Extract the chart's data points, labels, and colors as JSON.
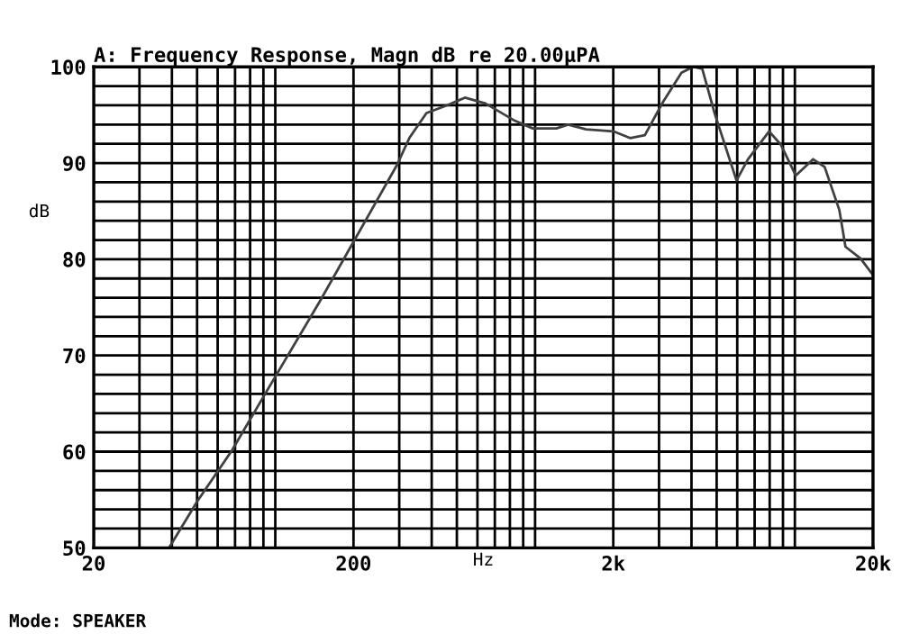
{
  "chart_data": {
    "type": "line",
    "title": "A: Frequency Response, Magn dB re 20.00μPA",
    "xlabel": "Hz",
    "ylabel": "dB",
    "annotations": [
      "Mode: SPEAKER"
    ],
    "log": "x",
    "grid": true,
    "legend": false,
    "marker": "none",
    "line_style": "solid",
    "xlim": [
      20,
      20000
    ],
    "ylim": [
      50,
      100
    ],
    "xticks": [
      20,
      {
        "value": 30,
        "label": null
      },
      {
        "value": 40,
        "label": null
      },
      {
        "value": 50,
        "label": null
      },
      {
        "value": 60,
        "label": null
      },
      {
        "value": 70,
        "label": null
      },
      {
        "value": 80,
        "label": null
      },
      {
        "value": 90,
        "label": null
      },
      {
        "value": 100,
        "label": null
      },
      200,
      {
        "value": 300,
        "label": null
      },
      {
        "value": 400,
        "label": null
      },
      {
        "value": 500,
        "label": null
      },
      {
        "value": 600,
        "label": null
      },
      {
        "value": 700,
        "label": null
      },
      {
        "value": 800,
        "label": null
      },
      {
        "value": 900,
        "label": null
      },
      {
        "value": 1000,
        "label": null
      },
      {
        "value": 2000,
        "label": "2k"
      },
      {
        "value": 3000,
        "label": null
      },
      {
        "value": 4000,
        "label": null
      },
      {
        "value": 5000,
        "label": null
      },
      {
        "value": 6000,
        "label": null
      },
      {
        "value": 7000,
        "label": null
      },
      {
        "value": 8000,
        "label": null
      },
      {
        "value": 9000,
        "label": null
      },
      {
        "value": 10000,
        "label": null
      },
      {
        "value": 20000,
        "label": "20k"
      }
    ],
    "yticks": [
      50,
      {
        "value": 52,
        "label": null
      },
      {
        "value": 54,
        "label": null
      },
      {
        "value": 56,
        "label": null
      },
      {
        "value": 58,
        "label": null
      },
      60,
      {
        "value": 62,
        "label": null
      },
      {
        "value": 64,
        "label": null
      },
      {
        "value": 66,
        "label": null
      },
      {
        "value": 68,
        "label": null
      },
      70,
      {
        "value": 72,
        "label": null
      },
      {
        "value": 74,
        "label": null
      },
      {
        "value": 76,
        "label": null
      },
      {
        "value": 78,
        "label": null
      },
      80,
      {
        "value": 82,
        "label": null
      },
      {
        "value": 84,
        "label": null
      },
      {
        "value": 86,
        "label": null
      },
      {
        "value": 88,
        "label": null
      },
      90,
      {
        "value": 92,
        "label": null
      },
      {
        "value": 94,
        "label": null
      },
      {
        "value": 96,
        "label": null
      },
      {
        "value": 98,
        "label": null
      },
      100
    ],
    "series": [
      {
        "color": "#404040",
        "x": [
          39,
          50,
          68,
          90,
          149,
          198,
          294,
          328,
          382,
          458,
          537,
          644,
          836,
          980,
          1208,
          1340,
          1572,
          2000,
          2321,
          2646,
          3100,
          3660,
          4060,
          4400,
          4920,
          5960,
          6600,
          7960,
          8840,
          10080,
          11760,
          13020,
          14840,
          15660,
          17880,
          19800
        ],
        "values": [
          50,
          54.8,
          60.1,
          65.7,
          75.7,
          81.6,
          89.8,
          92.6,
          95.2,
          96.0,
          96.8,
          96.2,
          94.4,
          93.6,
          93.6,
          94.0,
          93.5,
          93.3,
          92.6,
          92.9,
          96.3,
          99.4,
          100,
          99.8,
          95.1,
          88.2,
          90.4,
          93.3,
          91.9,
          88.7,
          90.4,
          89.6,
          85.1,
          81.3,
          80.1,
          78.5
        ]
      }
    ]
  }
}
